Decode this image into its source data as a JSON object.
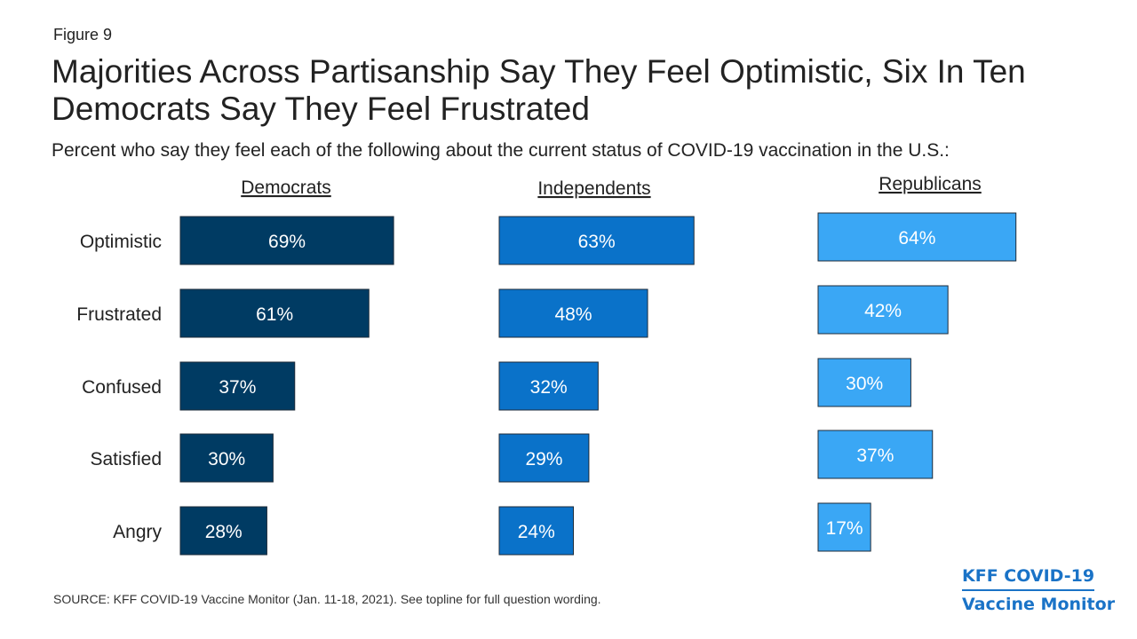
{
  "figure_label": "Figure 9",
  "title": "Majorities Across Partisanship Say They Feel Optimistic, Six In Ten Democrats Say They Feel Frustrated",
  "subtitle": "Percent who say they feel each of the following about the current status of COVID-19 vaccination in the U.S.:",
  "source": "SOURCE: KFF COVID-19 Vaccine Monitor (Jan. 11-18, 2021). See topline for full question wording.",
  "brand": {
    "line1": "KFF COVID-19",
    "line2": "Vaccine Monitor",
    "color": "#1a73c7"
  },
  "chart_data": {
    "type": "bar",
    "orientation": "horizontal",
    "categories": [
      "Optimistic",
      "Frustrated",
      "Confused",
      "Satisfied",
      "Angry"
    ],
    "value_suffix": "%",
    "series": [
      {
        "name": "Democrats",
        "values": [
          69,
          61,
          37,
          30,
          28
        ],
        "color": "#003b63"
      },
      {
        "name": "Independents",
        "values": [
          63,
          48,
          32,
          29,
          24
        ],
        "color": "#0a72c9"
      },
      {
        "name": "Republicans",
        "values": [
          64,
          42,
          30,
          37,
          17
        ],
        "color": "#3aa7f5"
      }
    ],
    "grid": false,
    "legend": "panel-headers"
  }
}
